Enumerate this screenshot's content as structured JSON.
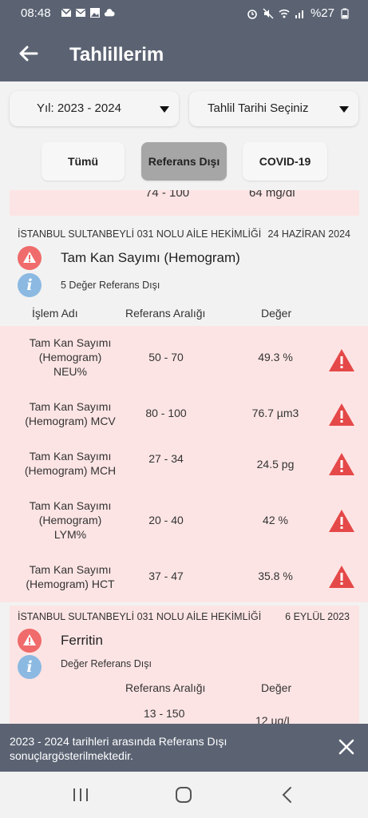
{
  "status_bar": {
    "time": "08:48",
    "battery": "%27"
  },
  "header": {
    "title": "Tahlillerim"
  },
  "filters": {
    "year_label": "Yıl: 2023 - 2024",
    "date_label": "Tahlil Tarihi Seçiniz",
    "segments": [
      {
        "label": "Tümü",
        "active": false
      },
      {
        "label": "Referans Dışı",
        "active": true
      },
      {
        "label": "COVID-19",
        "active": false
      }
    ]
  },
  "previous_row": {
    "ref": "74 - 100",
    "value": "64 mg/dl"
  },
  "cards": [
    {
      "clinic": "İSTANBUL SULTANBEYLİ 031 NOLU AİLE HEKİMLİĞİ",
      "date": "24 HAZİRAN 2024",
      "test_name": "Tam Kan Sayımı (Hemogram)",
      "note": "5 Değer Referans Dışı",
      "columns": {
        "name": "İşlem Adı",
        "ref": "Referans Aralığı",
        "value": "Değer"
      },
      "rows": [
        {
          "name_lines": [
            "Tam Kan Sayımı",
            "(Hemogram)",
            "NEU%"
          ],
          "ref": "50 - 70",
          "value": "49.3 %"
        },
        {
          "name_lines": [
            "Tam Kan Sayımı",
            "(Hemogram) MCV"
          ],
          "ref": "80 - 100",
          "value": "76.7 µm3"
        },
        {
          "name_lines": [
            "Tam Kan Sayımı",
            "(Hemogram) MCH"
          ],
          "ref": "27 - 34",
          "value": "24.5 pg"
        },
        {
          "name_lines": [
            "Tam Kan Sayımı",
            "(Hemogram)",
            "LYM%"
          ],
          "ref": "20 - 40",
          "value": "42 %"
        },
        {
          "name_lines": [
            "Tam Kan Sayımı",
            "(Hemogram) HCT"
          ],
          "ref": "37 - 47",
          "value": "35.8 %"
        }
      ]
    },
    {
      "clinic": "İSTANBUL SULTANBEYLİ 031 NOLU AİLE HEKİMLİĞİ",
      "date": "6 EYLÜL 2023",
      "test_name": "Ferritin",
      "note": "Değer Referans Dışı",
      "columns": {
        "ref": "Referans Aralığı",
        "value": "Değer"
      },
      "rows": [
        {
          "ref": "13 - 150",
          "value": "12 µg/L"
        }
      ]
    }
  ],
  "snackbar": {
    "message": "2023 - 2024 tarihleri arasında Referans Dışı sonuçlargösterilmektedir."
  },
  "colors": {
    "primary": "#5b6373",
    "alert_bg": "#fde4e4",
    "alert_red": "#e54848",
    "info_blue": "#8bb9e2"
  },
  "icons": [
    "back-arrow-icon",
    "dropdown-caret-icon",
    "warning-icon",
    "info-icon",
    "close-icon",
    "recents-icon",
    "home-icon",
    "back-icon"
  ]
}
